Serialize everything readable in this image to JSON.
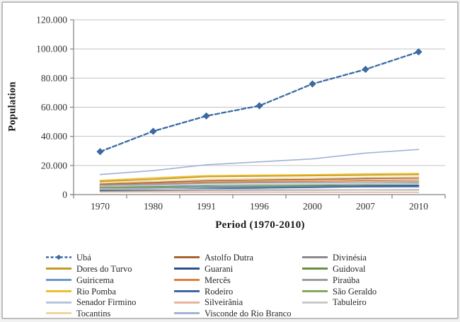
{
  "window": {
    "background": "#ffffff",
    "border_color": "#bdbdbd"
  },
  "chart_data": {
    "type": "line",
    "title": "",
    "xlabel": "Period (1970-2010)",
    "ylabel": "Population",
    "categories": [
      "1970",
      "1980",
      "1991",
      "1996",
      "2000",
      "2007",
      "2010"
    ],
    "y_axis": {
      "min": 0,
      "max": 120000,
      "step": 20000,
      "tick_labels": [
        "0",
        "20.000",
        "40.000",
        "60.000",
        "80.000",
        "100.000",
        "120.000"
      ]
    },
    "grid": true,
    "legend_position": "bottom",
    "colors": {
      "gridline": "#c3c3c3",
      "axis": "#808080",
      "tick_text": "#333333"
    },
    "series": [
      {
        "name": "Ubá",
        "color": "#3a6ba5",
        "dash": true,
        "marker": "diamond",
        "values": [
          29500,
          43500,
          54000,
          61000,
          76000,
          86000,
          98000
        ]
      },
      {
        "name": "Astolfo Dutra",
        "color": "#a8642f",
        "dash": false,
        "marker": "none",
        "values": [
          7200,
          8300,
          9500,
          10000,
          10400,
          11000,
          11400
        ]
      },
      {
        "name": "Divinésia",
        "color": "#8a8a8a",
        "dash": false,
        "marker": "none",
        "values": [
          2600,
          2800,
          3000,
          3100,
          3100,
          3200,
          3200
        ]
      },
      {
        "name": "Dores do Turvo",
        "color": "#c39b23",
        "dash": false,
        "marker": "none",
        "values": [
          9000,
          10500,
          12300,
          12700,
          13000,
          13400,
          13700
        ]
      },
      {
        "name": "Guarani",
        "color": "#2e4f8c",
        "dash": false,
        "marker": "none",
        "values": [
          5200,
          5500,
          5900,
          6000,
          6100,
          6300,
          6400
        ]
      },
      {
        "name": "Guidoval",
        "color": "#6b8e3f",
        "dash": false,
        "marker": "none",
        "values": [
          4800,
          5200,
          5600,
          5700,
          5800,
          5900,
          6000
        ]
      },
      {
        "name": "Guiricema",
        "color": "#6c96cc",
        "dash": false,
        "marker": "none",
        "values": [
          4200,
          4600,
          5000,
          5100,
          5200,
          5300,
          5300
        ]
      },
      {
        "name": "Mercês",
        "color": "#dc7e3d",
        "dash": false,
        "marker": "none",
        "values": [
          6600,
          7400,
          8500,
          8900,
          9200,
          9700,
          10000
        ]
      },
      {
        "name": "Piraúba",
        "color": "#9c9c9c",
        "dash": false,
        "marker": "none",
        "values": [
          6400,
          7000,
          7800,
          8100,
          8300,
          8600,
          8800
        ]
      },
      {
        "name": "Rio Pomba",
        "color": "#efbf2e",
        "dash": false,
        "marker": "none",
        "values": [
          9800,
          11500,
          13000,
          13400,
          13700,
          14200,
          14500
        ]
      },
      {
        "name": "Rodeiro",
        "color": "#3d66a3",
        "dash": false,
        "marker": "none",
        "values": [
          3000,
          3500,
          4100,
          4500,
          4900,
          5500,
          5900
        ]
      },
      {
        "name": "São Geraldo",
        "color": "#82ab58",
        "dash": false,
        "marker": "none",
        "values": [
          4400,
          5000,
          5800,
          6200,
          6700,
          7400,
          7800
        ]
      },
      {
        "name": "Senador Firmino",
        "color": "#b6c3dc",
        "dash": false,
        "marker": "none",
        "values": [
          5600,
          6100,
          6700,
          6900,
          7100,
          7300,
          7400
        ]
      },
      {
        "name": "Silveirânia",
        "color": "#e9b29c",
        "dash": false,
        "marker": "none",
        "values": [
          1800,
          1800,
          1700,
          1700,
          1600,
          1600,
          1600
        ]
      },
      {
        "name": "Tabuleiro",
        "color": "#c9c9c9",
        "dash": false,
        "marker": "none",
        "values": [
          3800,
          3700,
          3600,
          3500,
          3400,
          3400,
          3500
        ]
      },
      {
        "name": "Tocantins",
        "color": "#efd6a0",
        "dash": false,
        "marker": "none",
        "values": [
          8000,
          9200,
          10500,
          11000,
          11300,
          11800,
          12100
        ]
      },
      {
        "name": "Visconde do Rio Branco",
        "color": "#a3b3d7",
        "dash": false,
        "marker": "none",
        "values": [
          13800,
          16500,
          20500,
          22500,
          24500,
          28500,
          31000
        ]
      }
    ]
  }
}
